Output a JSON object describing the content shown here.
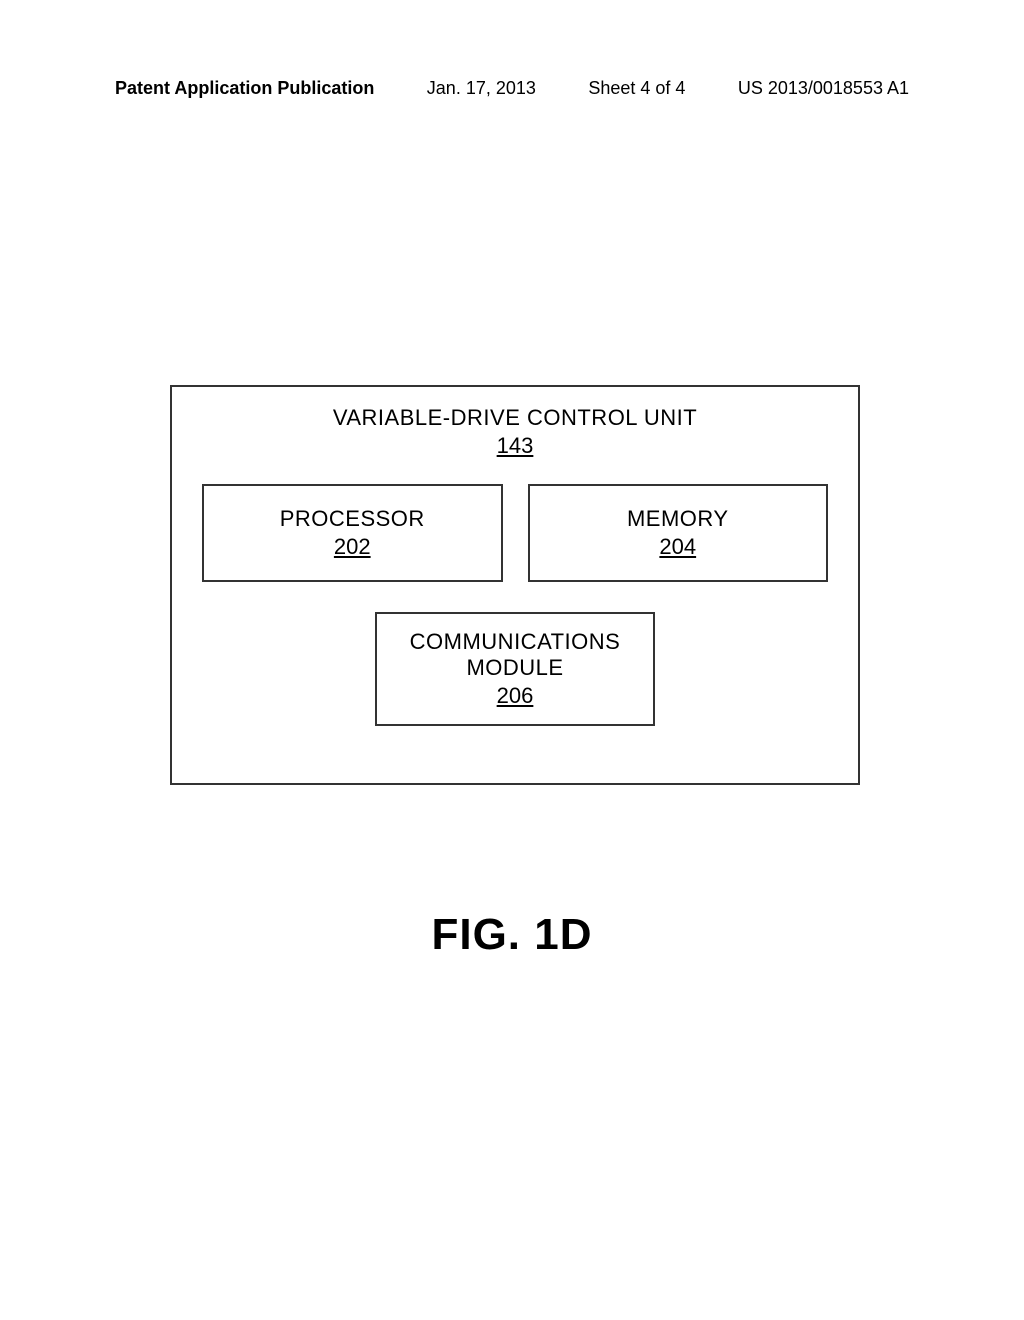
{
  "header": {
    "publication": "Patent Application Publication",
    "date": "Jan. 17, 2013",
    "sheet": "Sheet 4 of 4",
    "pubno": "US 2013/0018553 A1"
  },
  "diagram": {
    "main_title": "VARIABLE-DRIVE CONTROL UNIT",
    "main_ref": "143",
    "processor": {
      "label": "PROCESSOR",
      "ref": "202"
    },
    "memory": {
      "label": "MEMORY",
      "ref": "204"
    },
    "comm": {
      "label1": "COMMUNICATIONS",
      "label2": "MODULE",
      "ref": "206"
    }
  },
  "figure_label": "FIG. 1D",
  "colors": {
    "border": "#333333",
    "background": "#ffffff",
    "text": "#000000"
  }
}
